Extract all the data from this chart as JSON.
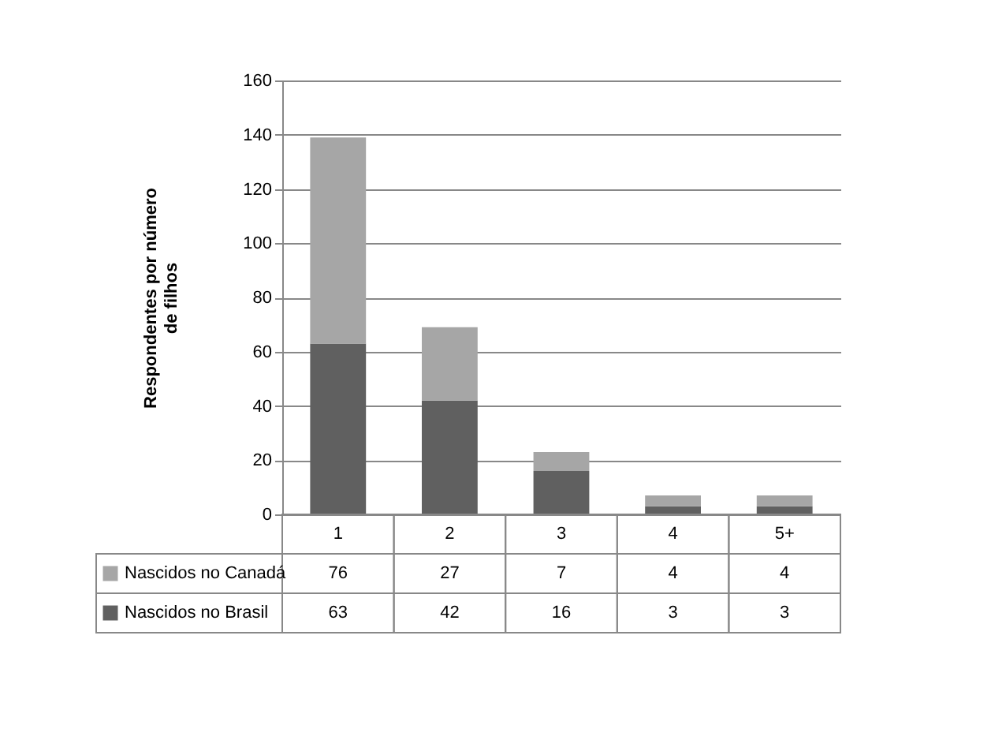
{
  "chart_data": {
    "type": "bar",
    "stacked": true,
    "ylabel": "Respondentes por número de filhos",
    "categories": [
      "1",
      "2",
      "3",
      "4",
      "5+"
    ],
    "series": [
      {
        "name": "Nascidos no Brasil",
        "color": "#606060",
        "values": [
          63,
          42,
          16,
          3,
          3
        ]
      },
      {
        "name": "Nascidos no Canadá",
        "color": "#a6a6a6",
        "values": [
          76,
          27,
          7,
          4,
          4
        ]
      }
    ],
    "ylim": [
      0,
      160
    ],
    "yticks": [
      0,
      20,
      40,
      60,
      80,
      100,
      120,
      140,
      160
    ],
    "grid": "y",
    "legend": "bottom",
    "data_labels": true
  }
}
